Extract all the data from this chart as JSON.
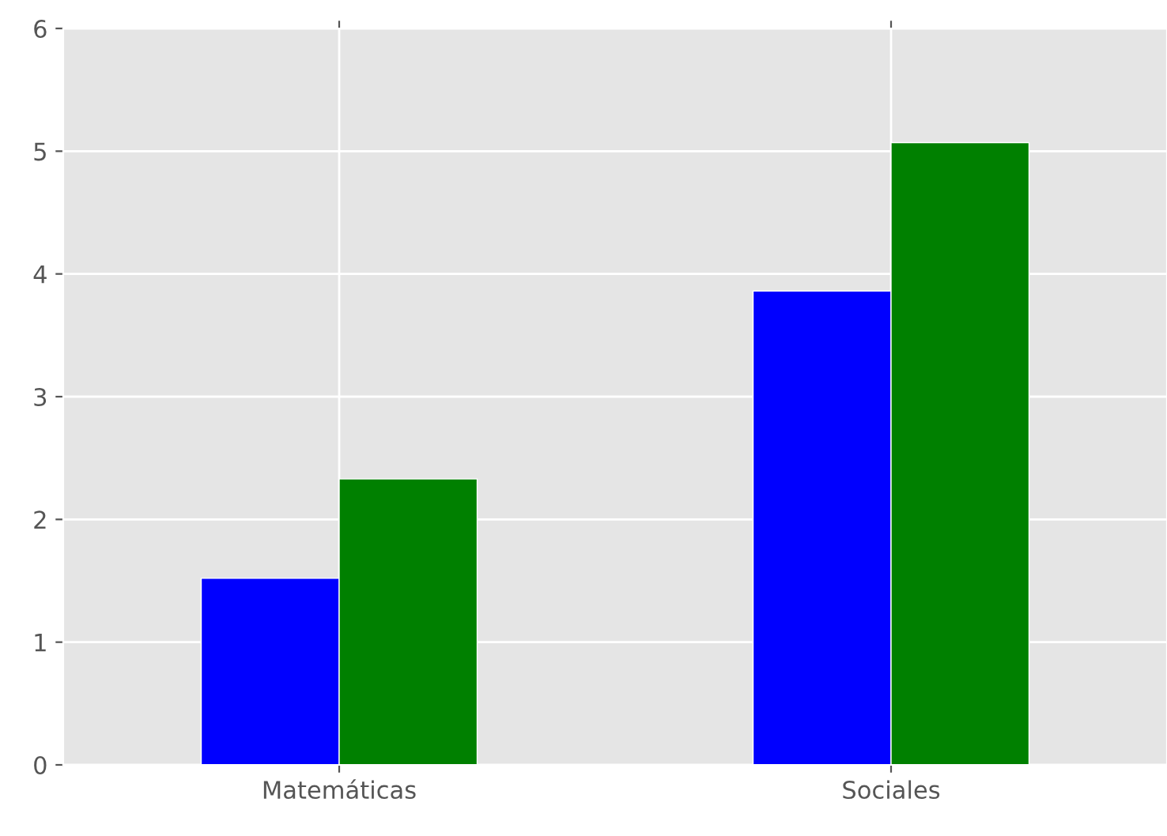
{
  "chart_data": {
    "type": "bar",
    "categories": [
      "Matemáticas",
      "Sociales"
    ],
    "series": [
      {
        "color": "#0000ff",
        "values": [
          1.52,
          3.86
        ]
      },
      {
        "color": "#008000",
        "values": [
          2.33,
          5.07
        ]
      }
    ],
    "ylim": [
      0,
      6
    ],
    "yticks": [
      0,
      1,
      2,
      3,
      4,
      5,
      6
    ],
    "grid": true
  }
}
